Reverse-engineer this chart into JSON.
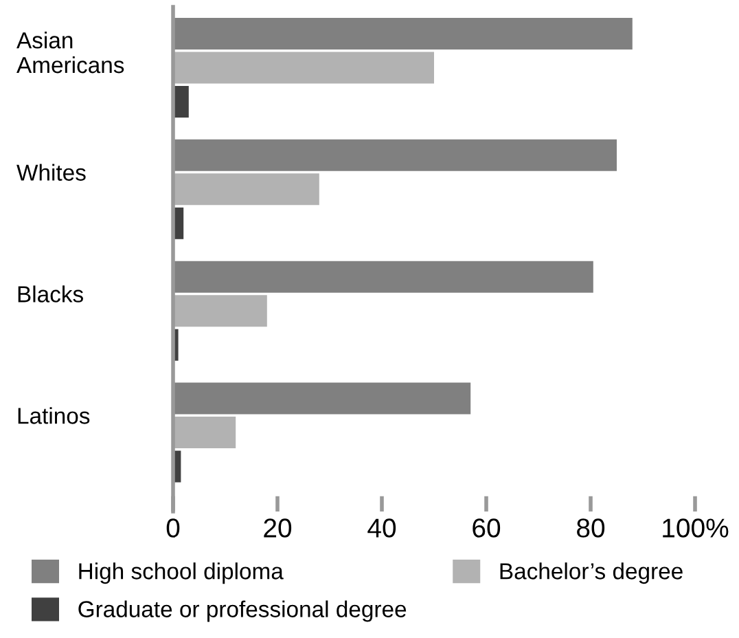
{
  "chart_data": {
    "type": "bar",
    "orientation": "horizontal",
    "categories": [
      "Asian\nAmericans",
      "Whites",
      "Blacks",
      "Latinos"
    ],
    "series": [
      {
        "name": "High school diploma",
        "color": "#808080",
        "values": [
          88,
          85,
          80.5,
          57
        ]
      },
      {
        "name": "Bachelor’s degree",
        "color": "#b2b2b2",
        "values": [
          50,
          28,
          18,
          12
        ]
      },
      {
        "name": "Graduate or professional degree",
        "color": "#404040",
        "values": [
          3,
          2,
          1,
          1.5
        ]
      }
    ],
    "xlim": [
      0,
      100
    ],
    "xticks": [
      0,
      20,
      40,
      60,
      80,
      {
        "value": 100,
        "label": "100%"
      }
    ],
    "grid": false,
    "legend": "bottom"
  }
}
